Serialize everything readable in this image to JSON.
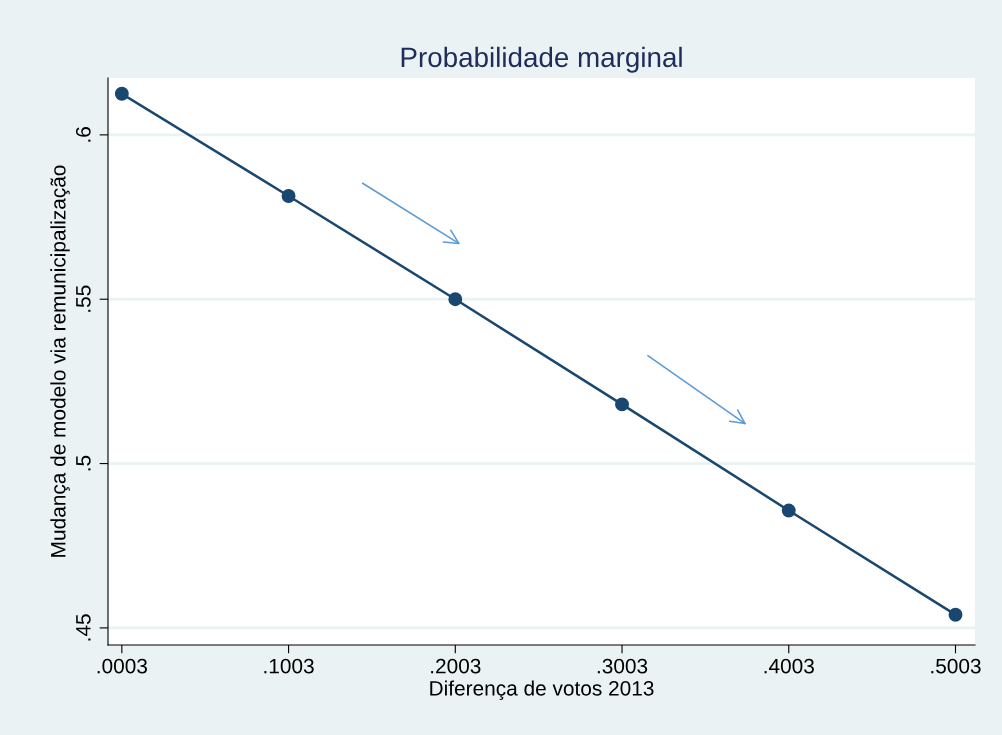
{
  "chart_data": {
    "type": "line",
    "title": "Probabilidade marginal",
    "xlabel": "Diferença de votos 2013",
    "ylabel": "Mudança de modelo via remunicipalização",
    "x": [
      0.0003,
      0.1003,
      0.2003,
      0.3003,
      0.4003,
      0.5003
    ],
    "series": [
      {
        "color": "#1a476f",
        "values": [
          0.6125,
          0.5814,
          0.55,
          0.518,
          0.4857,
          0.454
        ]
      }
    ],
    "marker": "circle",
    "line_style": "solid",
    "grid": "y",
    "legend": false,
    "xlim": [
      -0.008,
      0.512
    ],
    "ylim": [
      0.4448,
      0.6173
    ],
    "xticks": [
      {
        "value": 0.0003,
        "label": ".0003"
      },
      {
        "value": 0.1003,
        "label": ".1003"
      },
      {
        "value": 0.2003,
        "label": ".2003"
      },
      {
        "value": 0.3003,
        "label": ".3003"
      },
      {
        "value": 0.4003,
        "label": ".4003"
      },
      {
        "value": 0.5003,
        "label": ".5003"
      }
    ],
    "yticks": [
      {
        "value": 0.45,
        "label": ".45"
      },
      {
        "value": 0.5,
        "label": ".5"
      },
      {
        "value": 0.55,
        "label": ".55"
      },
      {
        "value": 0.6,
        "label": ".6"
      }
    ]
  }
}
